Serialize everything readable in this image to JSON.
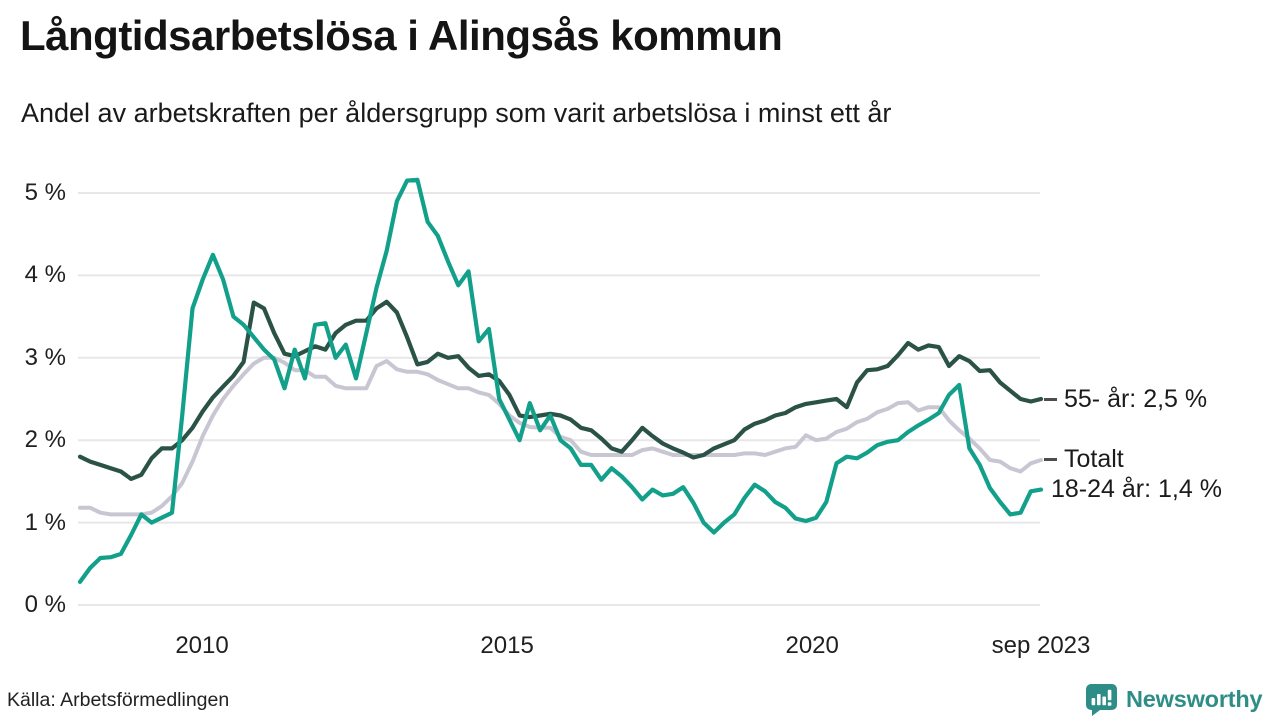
{
  "header": {},
  "footer": {
    "source": "Källa: Arbetsförmedlingen",
    "brand": "Newsworthy"
  },
  "colors": {
    "dark_green": "#2b5246",
    "teal": "#12a08b",
    "gray": "#c8c6d3",
    "grid": "#e7e7ea",
    "text": "#202020",
    "brand_teal": "#2e8e87",
    "label_tick": "#4d4d4d"
  },
  "chart_data": {
    "type": "line",
    "title": "Långtidsarbetslösa i Alingsås kommun",
    "subtitle": "Andel av arbetskraften per åldersgrupp som varit arbetslösa i minst ett år",
    "xlabel": "",
    "ylabel": "",
    "unit": "%",
    "grid": "horizontal",
    "legend_position": "right-end-labels",
    "ylim": [
      0,
      5.3
    ],
    "x_range": [
      2008,
      2023.75
    ],
    "x_ticks": [
      {
        "label": "2010",
        "year": 2010
      },
      {
        "label": "2015",
        "year": 2015
      },
      {
        "label": "2020",
        "year": 2020
      },
      {
        "label": "sep 2023",
        "year": 2023.75
      }
    ],
    "y_ticks": [
      {
        "label": "0 %",
        "value": 0
      },
      {
        "label": "1 %",
        "value": 1
      },
      {
        "label": "2 %",
        "value": 2
      },
      {
        "label": "3 %",
        "value": 3
      },
      {
        "label": "4 %",
        "value": 4
      },
      {
        "label": "5 %",
        "value": 5
      }
    ],
    "series": [
      {
        "id": "totalt",
        "name": "Totalt",
        "end_label": "Totalt",
        "dash": true,
        "color_key": "gray",
        "width": 4,
        "values": [
          1.18,
          1.18,
          1.12,
          1.1,
          1.1,
          1.1,
          1.1,
          1.12,
          1.2,
          1.32,
          1.48,
          1.74,
          2.05,
          2.3,
          2.5,
          2.66,
          2.8,
          2.93,
          3.0,
          3.0,
          2.94,
          2.85,
          2.85,
          2.77,
          2.77,
          2.66,
          2.63,
          2.63,
          2.63,
          2.9,
          2.96,
          2.86,
          2.83,
          2.83,
          2.8,
          2.73,
          2.68,
          2.63,
          2.63,
          2.58,
          2.55,
          2.44,
          2.3,
          2.21,
          2.16,
          2.15,
          2.15,
          2.04,
          2.0,
          1.86,
          1.82,
          1.82,
          1.82,
          1.82,
          1.82,
          1.88,
          1.9,
          1.86,
          1.82,
          1.82,
          1.82,
          1.82,
          1.82,
          1.82,
          1.82,
          1.84,
          1.84,
          1.82,
          1.86,
          1.9,
          1.92,
          2.06,
          2.0,
          2.02,
          2.1,
          2.14,
          2.22,
          2.26,
          2.34,
          2.38,
          2.45,
          2.46,
          2.36,
          2.4,
          2.4,
          2.24,
          2.12,
          2.02,
          1.9,
          1.76,
          1.74,
          1.66,
          1.62,
          1.72,
          1.76
        ]
      },
      {
        "id": "55ar",
        "name": "55- år",
        "end_label": "55- år: 2,5 %",
        "dash": true,
        "color_key": "dark_green",
        "width": 4.2,
        "values": [
          1.8,
          1.74,
          1.7,
          1.66,
          1.62,
          1.53,
          1.58,
          1.78,
          1.9,
          1.9,
          2.0,
          2.15,
          2.35,
          2.52,
          2.65,
          2.78,
          2.95,
          3.67,
          3.6,
          3.3,
          3.05,
          3.02,
          3.08,
          3.14,
          3.1,
          3.3,
          3.4,
          3.45,
          3.45,
          3.6,
          3.68,
          3.55,
          3.25,
          2.92,
          2.95,
          3.05,
          3.0,
          3.02,
          2.88,
          2.78,
          2.8,
          2.72,
          2.55,
          2.3,
          2.28,
          2.3,
          2.32,
          2.3,
          2.25,
          2.15,
          2.12,
          2.02,
          1.9,
          1.86,
          2.0,
          2.15,
          2.05,
          1.96,
          1.9,
          1.85,
          1.79,
          1.82,
          1.9,
          1.95,
          2.0,
          2.13,
          2.2,
          2.24,
          2.3,
          2.33,
          2.4,
          2.44,
          2.46,
          2.48,
          2.5,
          2.4,
          2.7,
          2.85,
          2.86,
          2.9,
          3.03,
          3.18,
          3.1,
          3.15,
          3.13,
          2.9,
          3.02,
          2.96,
          2.84,
          2.85,
          2.7,
          2.6,
          2.5,
          2.47,
          2.5
        ]
      },
      {
        "id": "1824",
        "name": "18-24 år",
        "end_label": "18-24 år: 1,4 %",
        "dash": false,
        "color_key": "teal",
        "width": 4.2,
        "values": [
          0.28,
          0.45,
          0.57,
          0.58,
          0.62,
          0.85,
          1.1,
          1.0,
          1.06,
          1.12,
          2.3,
          3.6,
          3.95,
          4.25,
          3.95,
          3.5,
          3.4,
          3.25,
          3.1,
          2.98,
          2.63,
          3.1,
          2.75,
          3.4,
          3.42,
          3.0,
          3.16,
          2.75,
          3.3,
          3.85,
          4.3,
          4.9,
          5.15,
          5.16,
          4.65,
          4.48,
          4.17,
          3.88,
          4.05,
          3.2,
          3.35,
          2.5,
          2.25,
          2.0,
          2.45,
          2.12,
          2.3,
          2.0,
          1.9,
          1.7,
          1.7,
          1.52,
          1.66,
          1.56,
          1.43,
          1.28,
          1.4,
          1.33,
          1.35,
          1.43,
          1.24,
          1.0,
          0.88,
          1.0,
          1.1,
          1.3,
          1.46,
          1.38,
          1.25,
          1.18,
          1.05,
          1.02,
          1.06,
          1.25,
          1.72,
          1.8,
          1.78,
          1.85,
          1.94,
          1.98,
          2.0,
          2.1,
          2.18,
          2.25,
          2.33,
          2.55,
          2.67,
          1.9,
          1.7,
          1.42,
          1.25,
          1.1,
          1.12,
          1.38,
          1.4
        ]
      }
    ]
  }
}
